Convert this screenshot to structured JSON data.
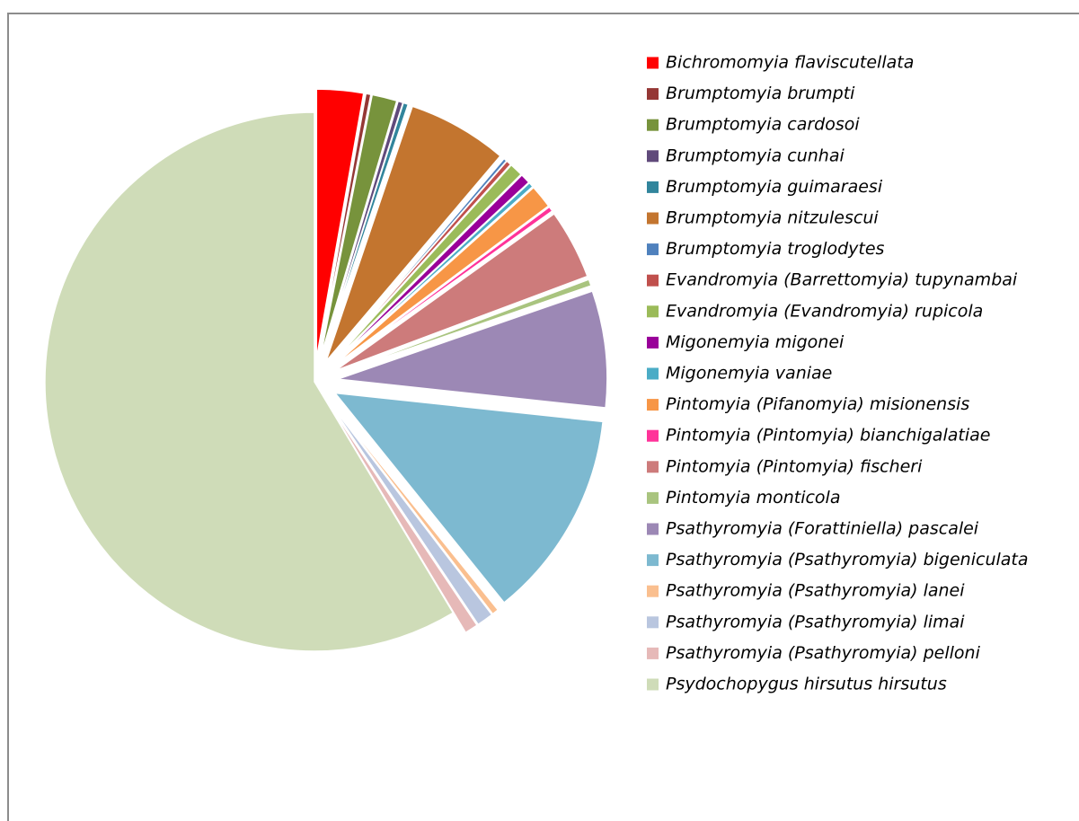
{
  "chart_data": {
    "type": "pie",
    "categories": [
      "Bichromomyia flaviscutellata",
      "Brumptomyia brumpti",
      "Brumptomyia cardosoi",
      "Brumptomyia cunhai",
      "Brumptomyia guimaraesi",
      "Brumptomyia nitzulescui",
      "Brumptomyia troglodytes",
      "Evandromyia (Barrettomyia) tupynambai",
      "Evandromyia (Evandromyia) rupicola",
      "Migonemyia migonei",
      "Migonemyia vaniae",
      "Pintomyia (Pifanomyia) misionensis",
      "Pintomyia (Pintomyia) bianchigalatiae",
      "Pintomyia (Pintomyia) fischeri",
      "Pintomyia monticola",
      "Psathyromyia (Forattiniella) pascalei",
      "Psathyromyia (Psathyromyia) bigeniculata",
      "Psathyromyia (Psathyromyia) lanei",
      "Psathyromyia (Psathyromyia) limai",
      "Psathyromyia (Psathyromyia) pelloni",
      "Psydochopygus hirsutus hirsutus"
    ],
    "values": [
      2.8,
      0.3,
      1.5,
      0.3,
      0.3,
      6,
      0.2,
      0.3,
      0.8,
      0.6,
      0.3,
      1.4,
      0.3,
      4.2,
      0.4,
      7,
      12.5,
      0.4,
      1,
      0.8,
      58.6
    ],
    "colors": [
      "#ff0000",
      "#953735",
      "#77933c",
      "#604a7b",
      "#31859c",
      "#c3752f",
      "#4f81bd",
      "#c0504d",
      "#9bbb59",
      "#990099",
      "#4bacc6",
      "#f79646",
      "#ff3399",
      "#cd7b7b",
      "#a9c47f",
      "#9c88b5",
      "#7db9d0",
      "#fabf8f",
      "#b9c6df",
      "#e6b9b8",
      "#cfdcb8"
    ],
    "legend": "right"
  }
}
